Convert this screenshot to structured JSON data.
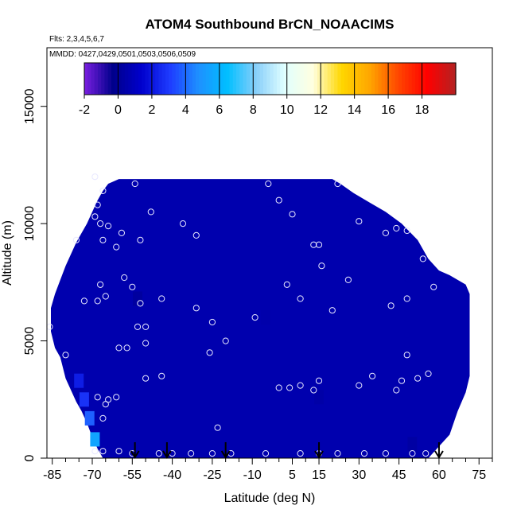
{
  "chart_data": {
    "type": "heatmap",
    "title": "ATOM4 Southbound BrCN_NOAACIMS",
    "flights_label": "Flts: 2,3,4,5,6,7",
    "dates_label": "MMDD: 0427,0429,0501,0503,0506,0509",
    "xlabel": "Latitude (deg N)",
    "ylabel": "Altitude (m)",
    "xlim": [
      -87,
      80
    ],
    "ylim": [
      0,
      17500
    ],
    "x_ticks": [
      "-85",
      "-70",
      "-55",
      "-40",
      "-25",
      "-10",
      "5",
      "15",
      "30",
      "45",
      "60",
      "75"
    ],
    "x_tick_values": [
      -85,
      -70,
      -55,
      -40,
      -25,
      -10,
      5,
      15,
      30,
      45,
      60,
      75
    ],
    "y_ticks": [
      "0",
      "5000",
      "10000",
      "15000"
    ],
    "y_tick_values": [
      0,
      5000,
      10000,
      15000
    ],
    "colorbar": {
      "min": -2,
      "max": 20,
      "tick_labels": [
        "-2",
        "0",
        "2",
        "4",
        "6",
        "8",
        "10",
        "12",
        "14",
        "16",
        "18"
      ],
      "tick_values": [
        -2,
        0,
        2,
        4,
        6,
        8,
        10,
        12,
        14,
        16,
        18
      ],
      "colors": [
        "#7a1fe0",
        "#00008b",
        "#0000cd",
        "#1e3cff",
        "#1e90ff",
        "#00bfff",
        "#87cefa",
        "#e0ffff",
        "#ffffe0",
        "#ffd700",
        "#ffa500",
        "#ff4500",
        "#ff0000",
        "#b22222"
      ]
    },
    "field_value": 0.6,
    "field_envelope": [
      [
        -85.5,
        5400,
        6400
      ],
      [
        -84,
        4700,
        7000
      ],
      [
        -82,
        4300,
        7600
      ],
      [
        -80,
        3400,
        8200
      ],
      [
        -78,
        2900,
        8700
      ],
      [
        -76,
        2400,
        9200
      ],
      [
        -74,
        2000,
        9600
      ],
      [
        -72,
        1500,
        10000
      ],
      [
        -70,
        900,
        10500
      ],
      [
        -68,
        400,
        11000
      ],
      [
        -66,
        0,
        11400
      ],
      [
        -64,
        0,
        11700
      ],
      [
        -60,
        0,
        11900
      ],
      [
        20,
        0,
        11900
      ],
      [
        23,
        0,
        11700
      ],
      [
        28,
        0,
        11300
      ],
      [
        34,
        0,
        10900
      ],
      [
        40,
        0,
        10500
      ],
      [
        46,
        0,
        10000
      ],
      [
        52,
        0,
        9300
      ],
      [
        56,
        0,
        8500
      ],
      [
        60,
        500,
        8000
      ],
      [
        64,
        1000,
        7800
      ],
      [
        67,
        2000,
        7600
      ],
      [
        70,
        2800,
        7400
      ],
      [
        71.5,
        3500,
        7000
      ]
    ],
    "field_patches": [
      {
        "lat": -69,
        "alt": 800,
        "value": 5.5
      },
      {
        "lat": -71,
        "alt": 1700,
        "value": 3.8
      },
      {
        "lat": -73,
        "alt": 2500,
        "value": 2.8
      },
      {
        "lat": -75,
        "alt": 3300,
        "value": 2.2
      },
      {
        "lat": -53,
        "alt": 6800,
        "value": 0.2
      },
      {
        "lat": 15,
        "alt": 2600,
        "value": 0.4
      },
      {
        "lat": 50,
        "alt": 600,
        "value": 0.3
      },
      {
        "lat": -5,
        "alt": 6000,
        "value": 0.5
      }
    ],
    "sample_points": [
      [
        -86,
        5600
      ],
      [
        -80,
        4400
      ],
      [
        -69,
        12000
      ],
      [
        -66,
        11400
      ],
      [
        -68,
        10800
      ],
      [
        -69,
        10300
      ],
      [
        -67,
        10000
      ],
      [
        -64,
        9900
      ],
      [
        -76,
        9300
      ],
      [
        -66,
        9300
      ],
      [
        -61,
        9000
      ],
      [
        -59,
        9600
      ],
      [
        -52,
        9300
      ],
      [
        -54,
        11700
      ],
      [
        -48,
        10500
      ],
      [
        -36,
        10000
      ],
      [
        -31,
        9500
      ],
      [
        -58,
        7700
      ],
      [
        -55,
        7300
      ],
      [
        -67,
        7400
      ],
      [
        -65,
        6900
      ],
      [
        -68,
        6700
      ],
      [
        -73,
        6700
      ],
      [
        -52,
        6600
      ],
      [
        -44,
        6800
      ],
      [
        -31,
        6400
      ],
      [
        -25,
        5800
      ],
      [
        -20,
        5000
      ],
      [
        -50,
        5600
      ],
      [
        -53,
        5600
      ],
      [
        -60,
        4700
      ],
      [
        -57,
        4700
      ],
      [
        -50,
        4900
      ],
      [
        -26,
        4500
      ],
      [
        -44,
        3500
      ],
      [
        -50,
        3400
      ],
      [
        -9,
        6000
      ],
      [
        -4,
        11700
      ],
      [
        0,
        11000
      ],
      [
        3,
        7400
      ],
      [
        8,
        6800
      ],
      [
        5,
        10400
      ],
      [
        13,
        9100
      ],
      [
        15,
        9100
      ],
      [
        16,
        8200
      ],
      [
        20,
        6300
      ],
      [
        22,
        11700
      ],
      [
        26,
        7600
      ],
      [
        30,
        10100
      ],
      [
        40,
        9600
      ],
      [
        44,
        9800
      ],
      [
        48,
        9700
      ],
      [
        54,
        8500
      ],
      [
        58,
        7300
      ],
      [
        42,
        6500
      ],
      [
        48,
        6800
      ],
      [
        48,
        4400
      ],
      [
        56,
        3600
      ],
      [
        52,
        3400
      ],
      [
        46,
        3300
      ],
      [
        44,
        2900
      ],
      [
        35,
        3500
      ],
      [
        30,
        3100
      ],
      [
        15,
        3300
      ],
      [
        13,
        2900
      ],
      [
        8,
        3100
      ],
      [
        4,
        3000
      ],
      [
        0,
        3000
      ],
      [
        -61,
        2600
      ],
      [
        -64,
        2500
      ],
      [
        -65,
        2300
      ],
      [
        -68,
        2600
      ],
      [
        -66,
        1700
      ],
      [
        -69,
        300
      ],
      [
        -66,
        300
      ],
      [
        -60,
        300
      ],
      [
        -55,
        200
      ],
      [
        -45,
        200
      ],
      [
        -40,
        200
      ],
      [
        -33,
        200
      ],
      [
        -25,
        200
      ],
      [
        -18,
        200
      ],
      [
        -5,
        200
      ],
      [
        8,
        200
      ],
      [
        15,
        200
      ],
      [
        22,
        200
      ],
      [
        32,
        200
      ],
      [
        40,
        200
      ],
      [
        50,
        200
      ],
      [
        55,
        200
      ],
      [
        -23,
        1300
      ]
    ],
    "flight_arrows_lat": [
      -54,
      -42,
      -20,
      15,
      60
    ]
  }
}
